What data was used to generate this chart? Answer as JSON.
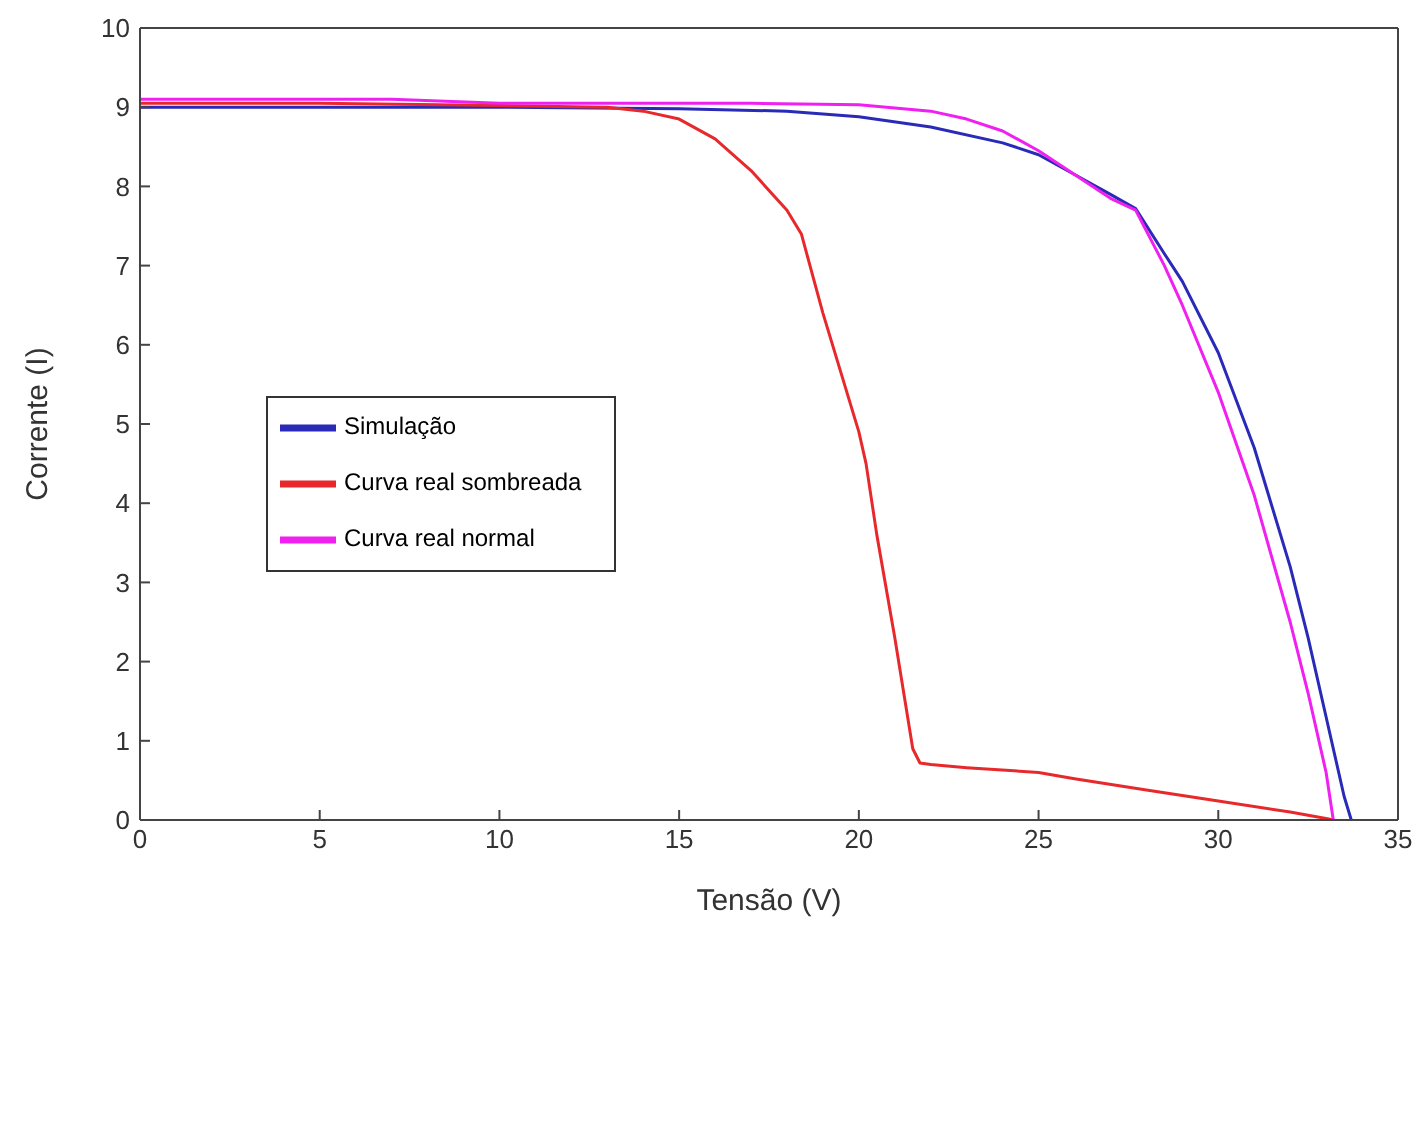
{
  "chart_data": {
    "type": "line",
    "xlabel": "Tensão (V)",
    "ylabel": "Corrente (I)",
    "xlim": [
      0,
      35
    ],
    "xticks": [
      0,
      5,
      10,
      15,
      20,
      25,
      30,
      35
    ],
    "ylim": [
      0,
      10
    ],
    "yticks": [
      0,
      1,
      2,
      3,
      4,
      5,
      6,
      7,
      8,
      9,
      10
    ],
    "legend": "left",
    "marker": "none",
    "line_style": "solid",
    "series": [
      {
        "name": "Simulação",
        "color": "#2a2ab8",
        "x": [
          0,
          5,
          10,
          15,
          18,
          20,
          22,
          24,
          25,
          26,
          27,
          27.7,
          28.5,
          29,
          30,
          31,
          32,
          32.5,
          33,
          33.5,
          33.7
        ],
        "values": [
          9.0,
          9.0,
          9.0,
          8.98,
          8.95,
          8.88,
          8.75,
          8.55,
          8.4,
          8.15,
          7.9,
          7.72,
          7.15,
          6.8,
          5.9,
          4.7,
          3.2,
          2.3,
          1.3,
          0.3,
          0
        ]
      },
      {
        "name": "Curva real sombreada",
        "color": "#e8292c",
        "x": [
          0,
          5,
          10,
          13,
          14,
          15,
          16,
          17,
          18,
          18.4,
          19,
          20,
          20.2,
          20.5,
          21,
          21.5,
          21.7,
          22,
          23,
          25,
          26,
          28,
          30,
          32,
          33,
          33.2
        ],
        "values": [
          9.05,
          9.05,
          9.02,
          9.0,
          8.95,
          8.85,
          8.6,
          8.2,
          7.7,
          7.4,
          6.4,
          4.9,
          4.5,
          3.6,
          2.3,
          0.9,
          0.72,
          0.7,
          0.66,
          0.6,
          0.52,
          0.38,
          0.24,
          0.1,
          0.02,
          0
        ]
      },
      {
        "name": "Curva real normal",
        "color": "#f020f0",
        "x": [
          0,
          7,
          10,
          13,
          17,
          20,
          22,
          23,
          24,
          25,
          26,
          27,
          27.7,
          28.5,
          29,
          30,
          31,
          32,
          32.5,
          33,
          33.2
        ],
        "values": [
          9.1,
          9.1,
          9.05,
          9.05,
          9.05,
          9.03,
          8.95,
          8.85,
          8.7,
          8.45,
          8.15,
          7.85,
          7.7,
          7.0,
          6.5,
          5.4,
          4.1,
          2.5,
          1.6,
          0.6,
          0
        ]
      }
    ]
  }
}
